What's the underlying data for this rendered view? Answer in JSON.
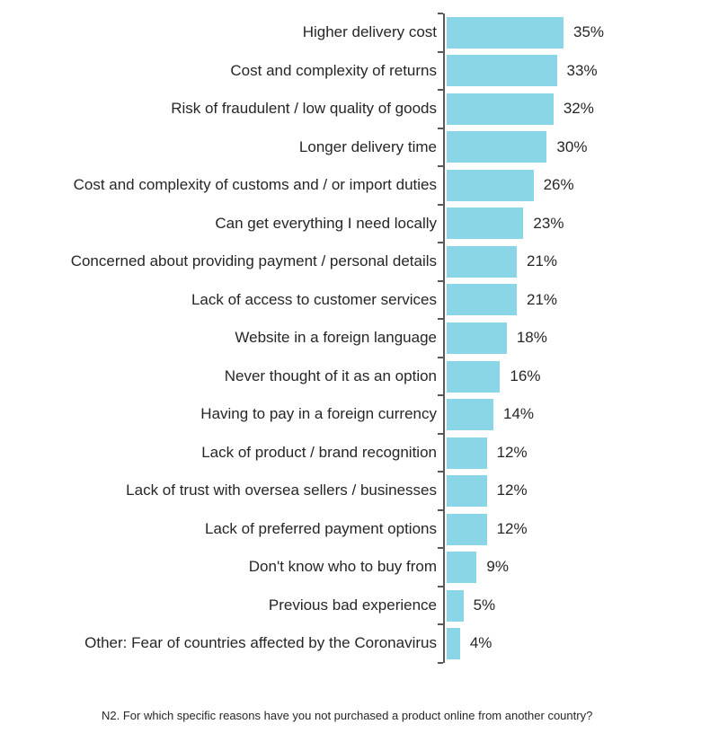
{
  "chart_data": {
    "type": "bar",
    "orientation": "horizontal",
    "title": "",
    "xlabel": "",
    "ylabel": "",
    "xlim": [
      0,
      35
    ],
    "grid": false,
    "legend": "none",
    "value_suffix": "%",
    "categories": [
      "Higher delivery cost",
      "Cost and complexity of returns",
      "Risk of fraudulent / low quality of goods",
      "Longer delivery time",
      "Cost and complexity of customs and / or import duties",
      "Can get everything I need locally",
      "Concerned about providing payment / personal details",
      "Lack of access to customer services",
      "Website in a foreign language",
      "Never thought of it as an option",
      "Having to pay in a foreign currency",
      "Lack of product / brand recognition",
      "Lack of trust with oversea sellers / businesses",
      "Lack of preferred payment options",
      "Don't know who to buy from",
      "Previous bad experience",
      "Other: Fear of countries affected by the Coronavirus"
    ],
    "values": [
      35,
      33,
      32,
      30,
      26,
      23,
      21,
      21,
      18,
      16,
      14,
      12,
      12,
      12,
      9,
      5,
      4
    ],
    "colors": {
      "bar": "#8AD6E6",
      "axis": "#595959",
      "text": "#262626"
    }
  },
  "footnote": {
    "text": "N2. For which specific reasons have you not purchased a product online from another country?"
  }
}
